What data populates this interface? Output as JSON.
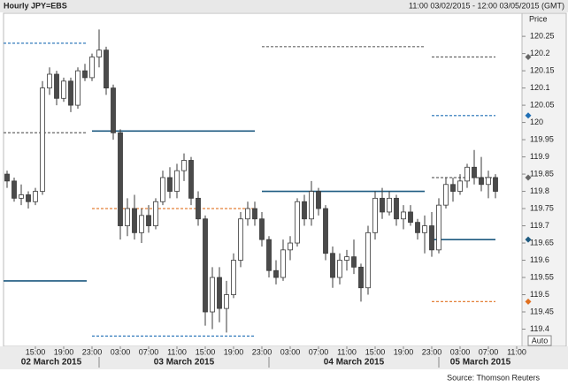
{
  "chart_data": {
    "type": "candlestick",
    "title": "Hourly JPY=EBS",
    "subtitle": "11:00 03/02/2015 - 12:00 03/05/2015 (GMT)",
    "y_label": "Price",
    "button": "Auto",
    "source": "Source: Thomson Reuters",
    "up_color": "#ffffff",
    "down_color": "#4a4a4a",
    "x": [
      0,
      1,
      2,
      3,
      4,
      5,
      6,
      7,
      8,
      9,
      10,
      11,
      12,
      13,
      14,
      15,
      16,
      17,
      18,
      19,
      20,
      21,
      22,
      23,
      24,
      25,
      26,
      27,
      28,
      29,
      30,
      31,
      32,
      33,
      34,
      35,
      36,
      37,
      38,
      39,
      40,
      41,
      42,
      43,
      44,
      45,
      46,
      47,
      48,
      49,
      50,
      51,
      52,
      53,
      54,
      55,
      56,
      57,
      58,
      59,
      60,
      61,
      62,
      63,
      64,
      65,
      66,
      67,
      68,
      69
    ],
    "open": [
      119.85,
      119.83,
      119.78,
      119.79,
      119.77,
      119.8,
      120.1,
      120.14,
      120.07,
      120.12,
      120.05,
      120.15,
      120.13,
      120.19,
      120.21,
      120.1,
      119.97,
      119.7,
      119.75,
      119.68,
      119.73,
      119.7,
      119.77,
      119.84,
      119.8,
      119.86,
      119.89,
      119.78,
      119.72,
      119.45,
      119.55,
      119.46,
      119.5,
      119.6,
      119.72,
      119.75,
      119.72,
      119.66,
      119.57,
      119.55,
      119.63,
      119.65,
      119.77,
      119.72,
      119.8,
      119.75,
      119.62,
      119.55,
      119.6,
      119.61,
      119.58,
      119.52,
      119.68,
      119.78,
      119.74,
      119.78,
      119.72,
      119.74,
      119.71,
      119.68,
      119.7,
      119.63,
      119.76,
      119.82,
      119.8,
      119.83,
      119.87,
      119.84,
      119.82,
      119.84
    ],
    "high": [
      119.86,
      119.84,
      119.82,
      119.8,
      119.81,
      120.12,
      120.16,
      120.15,
      120.13,
      120.13,
      120.16,
      120.17,
      120.2,
      120.27,
      120.22,
      120.11,
      119.98,
      119.78,
      119.79,
      119.75,
      119.76,
      119.78,
      119.86,
      119.87,
      119.88,
      119.91,
      119.9,
      119.8,
      119.73,
      119.58,
      119.58,
      119.54,
      119.62,
      119.74,
      119.77,
      119.77,
      119.74,
      119.67,
      119.6,
      119.66,
      119.67,
      119.78,
      119.79,
      119.83,
      119.81,
      119.76,
      119.64,
      119.62,
      119.63,
      119.66,
      119.59,
      119.7,
      119.8,
      119.81,
      119.8,
      119.79,
      119.76,
      119.76,
      119.72,
      119.73,
      119.74,
      119.78,
      119.84,
      119.84,
      119.85,
      119.88,
      119.92,
      119.9,
      119.86,
      119.85
    ],
    "low": [
      119.81,
      119.77,
      119.76,
      119.75,
      119.76,
      119.79,
      120.08,
      120.05,
      120.06,
      120.03,
      120.04,
      120.12,
      120.12,
      120.16,
      120.08,
      119.95,
      119.66,
      119.67,
      119.66,
      119.65,
      119.68,
      119.69,
      119.76,
      119.78,
      119.78,
      119.83,
      119.76,
      119.7,
      119.41,
      119.4,
      119.42,
      119.39,
      119.49,
      119.58,
      119.7,
      119.7,
      119.64,
      119.55,
      119.53,
      119.54,
      119.6,
      119.64,
      119.7,
      119.7,
      119.73,
      119.6,
      119.52,
      119.53,
      119.57,
      119.56,
      119.48,
      119.5,
      119.66,
      119.72,
      119.73,
      119.7,
      119.69,
      119.7,
      119.66,
      119.62,
      119.61,
      119.62,
      119.75,
      119.77,
      119.79,
      119.81,
      119.82,
      119.8,
      119.78,
      119.78
    ],
    "close": [
      119.83,
      119.78,
      119.79,
      119.77,
      119.8,
      120.1,
      120.14,
      120.07,
      120.12,
      120.05,
      120.15,
      120.13,
      120.19,
      120.21,
      120.1,
      119.97,
      119.7,
      119.75,
      119.68,
      119.73,
      119.7,
      119.77,
      119.84,
      119.8,
      119.86,
      119.89,
      119.78,
      119.72,
      119.45,
      119.55,
      119.46,
      119.5,
      119.6,
      119.72,
      119.75,
      119.72,
      119.66,
      119.57,
      119.55,
      119.63,
      119.65,
      119.77,
      119.72,
      119.8,
      119.75,
      119.62,
      119.55,
      119.6,
      119.61,
      119.58,
      119.52,
      119.68,
      119.78,
      119.74,
      119.78,
      119.72,
      119.74,
      119.71,
      119.68,
      119.7,
      119.63,
      119.76,
      119.82,
      119.8,
      119.83,
      119.87,
      119.84,
      119.82,
      119.84,
      119.8
    ],
    "levels": [
      {
        "value": 120.23,
        "x": [
          -0.5,
          11.25
        ],
        "color": "#1f6fb5",
        "dashed": true
      },
      {
        "value": 119.97,
        "x": [
          -0.5,
          11.25
        ],
        "color": "#666666",
        "dashed": true
      },
      {
        "value": 119.54,
        "x": [
          -0.5,
          11.25
        ],
        "color": "#1d5a80",
        "dashed": false
      },
      {
        "value": 119.975,
        "x": [
          12,
          35
        ],
        "color": "#1d5a80",
        "dashed": false
      },
      {
        "value": 119.75,
        "x": [
          12,
          35
        ],
        "color": "#e07020",
        "dashed": true
      },
      {
        "value": 119.38,
        "x": [
          12,
          35
        ],
        "color": "#1f6fb5",
        "dashed": true
      },
      {
        "value": 120.22,
        "x": [
          36,
          59
        ],
        "color": "#666666",
        "dashed": true
      },
      {
        "value": 119.8,
        "x": [
          36,
          59
        ],
        "color": "#1d5a80",
        "dashed": false
      },
      {
        "value": 120.19,
        "x": [
          60,
          69
        ],
        "color": "#666666",
        "dashed": true
      },
      {
        "value": 120.02,
        "x": [
          60,
          69
        ],
        "color": "#1f6fb5",
        "dashed": true
      },
      {
        "value": 119.84,
        "x": [
          60,
          69
        ],
        "color": "#666666",
        "dashed": true
      },
      {
        "value": 119.66,
        "x": [
          60,
          69
        ],
        "color": "#1d5a80",
        "dashed": false
      },
      {
        "value": 119.48,
        "x": [
          60,
          69
        ],
        "color": "#e07020",
        "dashed": true
      }
    ],
    "xlim": [
      -0.5,
      72.75
    ],
    "ylim": [
      119.35,
      120.317
    ],
    "yticks": [
      120.25,
      120.2,
      120.15,
      120.1,
      120.05,
      120,
      119.95,
      119.9,
      119.85,
      119.8,
      119.75,
      119.7,
      119.65,
      119.6,
      119.55,
      119.5,
      119.45,
      119.4
    ],
    "xticks": [
      {
        "value": 4,
        "label": "15:00"
      },
      {
        "value": 8,
        "label": "19:00"
      },
      {
        "value": 12,
        "label": "23:00"
      },
      {
        "value": 16,
        "label": "03:00"
      },
      {
        "value": 20,
        "label": "07:00"
      },
      {
        "value": 24,
        "label": "11:00"
      },
      {
        "value": 28,
        "label": "15:00"
      },
      {
        "value": 32,
        "label": "19:00"
      },
      {
        "value": 36,
        "label": "23:00"
      },
      {
        "value": 40,
        "label": "03:00"
      },
      {
        "value": 44,
        "label": "07:00"
      },
      {
        "value": 48,
        "label": "11:00"
      },
      {
        "value": 52,
        "label": "15:00"
      },
      {
        "value": 56,
        "label": "19:00"
      },
      {
        "value": 60,
        "label": "23:00"
      },
      {
        "value": 64,
        "label": "03:00"
      },
      {
        "value": 68,
        "label": "07:00"
      },
      {
        "value": 72,
        "label": "11:00"
      }
    ],
    "days": [
      {
        "label": "02 March 2015",
        "start": -11
      },
      {
        "label": "03 March 2015",
        "start": 13
      },
      {
        "label": "04 March 2015",
        "start": 37
      },
      {
        "label": "05 March 2015",
        "start": 61
      }
    ]
  }
}
